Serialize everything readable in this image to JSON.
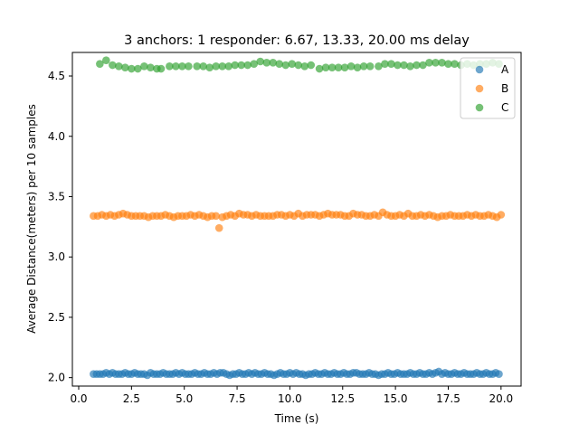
{
  "chart_data": {
    "type": "scatter",
    "title": "3 anchors: 1 responder: 6.67, 13.33, 20.00 ms delay",
    "xlabel": "Time (s)",
    "ylabel": "Average Distance(meters) per 10 samples",
    "xlim": [
      -0.3,
      20.95
    ],
    "ylim": [
      1.93,
      4.695
    ],
    "xticks": [
      0.0,
      2.5,
      5.0,
      7.5,
      10.0,
      12.5,
      15.0,
      17.5,
      20.0
    ],
    "xtick_labels": [
      "0.0",
      "2.5",
      "5.0",
      "7.5",
      "10.0",
      "12.5",
      "15.0",
      "17.5",
      "20.0"
    ],
    "yticks": [
      2.0,
      2.5,
      3.0,
      3.5,
      4.0,
      4.5
    ],
    "ytick_labels": [
      "2.0",
      "2.5",
      "3.0",
      "3.5",
      "4.0",
      "4.5"
    ],
    "grid": false,
    "legend_position": "top-right",
    "series": [
      {
        "name": "A",
        "color": "#1f77b4",
        "x": [
          0.7,
          0.85,
          1.0,
          1.15,
          1.3,
          1.45,
          1.6,
          1.75,
          1.9,
          2.05,
          2.2,
          2.35,
          2.5,
          2.65,
          2.8,
          2.95,
          3.1,
          3.25,
          3.4,
          3.55,
          3.7,
          3.85,
          4.0,
          4.15,
          4.3,
          4.45,
          4.6,
          4.75,
          4.9,
          5.05,
          5.2,
          5.35,
          5.5,
          5.65,
          5.8,
          5.95,
          6.1,
          6.25,
          6.4,
          6.55,
          6.7,
          6.85,
          7.0,
          7.15,
          7.3,
          7.45,
          7.6,
          7.75,
          7.9,
          8.05,
          8.2,
          8.35,
          8.5,
          8.65,
          8.8,
          8.95,
          9.1,
          9.25,
          9.4,
          9.55,
          9.7,
          9.85,
          10.0,
          10.15,
          10.3,
          10.45,
          10.6,
          10.75,
          10.9,
          11.05,
          11.2,
          11.35,
          11.5,
          11.65,
          11.8,
          11.95,
          12.1,
          12.25,
          12.4,
          12.55,
          12.7,
          12.85,
          13.0,
          13.15,
          13.3,
          13.45,
          13.6,
          13.75,
          13.9,
          14.05,
          14.2,
          14.35,
          14.5,
          14.65,
          14.8,
          14.95,
          15.1,
          15.25,
          15.4,
          15.55,
          15.7,
          15.85,
          16.0,
          16.15,
          16.3,
          16.45,
          16.6,
          16.75,
          16.9,
          17.05,
          17.2,
          17.35,
          17.5,
          17.65,
          17.8,
          17.95,
          18.1,
          18.25,
          18.4,
          18.55,
          18.7,
          18.85,
          19.0,
          19.15,
          19.3,
          19.45,
          19.6,
          19.75,
          19.9
        ],
        "y": [
          2.03,
          2.03,
          2.03,
          2.03,
          2.04,
          2.03,
          2.04,
          2.03,
          2.03,
          2.03,
          2.04,
          2.03,
          2.03,
          2.04,
          2.03,
          2.03,
          2.03,
          2.02,
          2.04,
          2.03,
          2.03,
          2.03,
          2.04,
          2.03,
          2.03,
          2.03,
          2.04,
          2.03,
          2.04,
          2.03,
          2.03,
          2.03,
          2.04,
          2.03,
          2.03,
          2.04,
          2.03,
          2.03,
          2.04,
          2.03,
          2.04,
          2.04,
          2.03,
          2.02,
          2.03,
          2.03,
          2.04,
          2.03,
          2.03,
          2.04,
          2.03,
          2.04,
          2.03,
          2.03,
          2.04,
          2.03,
          2.03,
          2.02,
          2.03,
          2.04,
          2.03,
          2.03,
          2.04,
          2.03,
          2.04,
          2.03,
          2.03,
          2.02,
          2.03,
          2.03,
          2.04,
          2.03,
          2.03,
          2.04,
          2.03,
          2.03,
          2.04,
          2.03,
          2.03,
          2.04,
          2.03,
          2.03,
          2.04,
          2.04,
          2.03,
          2.03,
          2.03,
          2.04,
          2.03,
          2.03,
          2.02,
          2.03,
          2.03,
          2.04,
          2.03,
          2.03,
          2.04,
          2.03,
          2.03,
          2.03,
          2.04,
          2.03,
          2.03,
          2.04,
          2.03,
          2.03,
          2.04,
          2.03,
          2.04,
          2.05,
          2.03,
          2.04,
          2.03,
          2.03,
          2.04,
          2.03,
          2.03,
          2.04,
          2.03,
          2.03,
          2.03,
          2.04,
          2.03,
          2.03,
          2.04,
          2.03,
          2.03,
          2.04,
          2.03
        ]
      },
      {
        "name": "B",
        "color": "#ff7f0e",
        "x": [
          0.7,
          0.9,
          1.1,
          1.3,
          1.5,
          1.7,
          1.9,
          2.1,
          2.3,
          2.5,
          2.7,
          2.9,
          3.1,
          3.3,
          3.5,
          3.7,
          3.9,
          4.1,
          4.3,
          4.5,
          4.7,
          4.9,
          5.1,
          5.3,
          5.5,
          5.7,
          5.9,
          6.1,
          6.3,
          6.5,
          6.65,
          6.8,
          7.0,
          7.2,
          7.4,
          7.6,
          7.8,
          8.0,
          8.2,
          8.4,
          8.6,
          8.8,
          9.0,
          9.2,
          9.4,
          9.6,
          9.8,
          10.0,
          10.2,
          10.4,
          10.6,
          10.8,
          11.0,
          11.2,
          11.4,
          11.6,
          11.8,
          12.0,
          12.2,
          12.4,
          12.6,
          12.8,
          13.0,
          13.2,
          13.4,
          13.6,
          13.8,
          14.0,
          14.2,
          14.4,
          14.6,
          14.8,
          15.0,
          15.2,
          15.4,
          15.6,
          15.8,
          16.0,
          16.2,
          16.4,
          16.6,
          16.8,
          17.0,
          17.2,
          17.4,
          17.6,
          17.8,
          18.0,
          18.2,
          18.4,
          18.6,
          18.8,
          19.0,
          19.2,
          19.4,
          19.6,
          19.8,
          20.0
        ],
        "y": [
          3.34,
          3.34,
          3.35,
          3.34,
          3.35,
          3.34,
          3.35,
          3.36,
          3.35,
          3.34,
          3.34,
          3.34,
          3.34,
          3.33,
          3.34,
          3.34,
          3.34,
          3.35,
          3.34,
          3.33,
          3.34,
          3.34,
          3.34,
          3.35,
          3.34,
          3.35,
          3.34,
          3.33,
          3.34,
          3.34,
          3.24,
          3.33,
          3.34,
          3.35,
          3.34,
          3.36,
          3.35,
          3.35,
          3.34,
          3.35,
          3.34,
          3.34,
          3.34,
          3.34,
          3.35,
          3.35,
          3.34,
          3.35,
          3.34,
          3.36,
          3.34,
          3.35,
          3.35,
          3.35,
          3.34,
          3.35,
          3.36,
          3.35,
          3.35,
          3.35,
          3.34,
          3.34,
          3.36,
          3.35,
          3.35,
          3.34,
          3.34,
          3.35,
          3.34,
          3.37,
          3.35,
          3.34,
          3.34,
          3.35,
          3.34,
          3.36,
          3.34,
          3.34,
          3.35,
          3.34,
          3.35,
          3.34,
          3.33,
          3.34,
          3.34,
          3.35,
          3.34,
          3.34,
          3.34,
          3.35,
          3.34,
          3.35,
          3.34,
          3.34,
          3.35,
          3.34,
          3.33,
          3.35
        ]
      },
      {
        "name": "C",
        "color": "#2ca02c",
        "x": [
          1.0,
          1.3,
          1.6,
          1.9,
          2.2,
          2.5,
          2.8,
          3.1,
          3.4,
          3.7,
          3.9,
          4.3,
          4.6,
          4.9,
          5.2,
          5.6,
          5.9,
          6.2,
          6.5,
          6.8,
          7.1,
          7.4,
          7.7,
          8.0,
          8.3,
          8.6,
          8.9,
          9.2,
          9.5,
          9.8,
          10.1,
          10.4,
          10.7,
          11.0,
          11.4,
          11.7,
          12.0,
          12.3,
          12.6,
          12.9,
          13.2,
          13.5,
          13.8,
          14.2,
          14.5,
          14.8,
          15.1,
          15.4,
          15.7,
          16.0,
          16.3,
          16.6,
          16.9,
          17.2,
          17.5,
          17.8,
          18.1,
          18.4,
          18.7,
          19.0,
          19.3,
          19.6,
          19.9
        ],
        "y": [
          4.6,
          4.63,
          4.59,
          4.58,
          4.57,
          4.56,
          4.56,
          4.58,
          4.57,
          4.56,
          4.56,
          4.58,
          4.58,
          4.58,
          4.58,
          4.58,
          4.58,
          4.57,
          4.58,
          4.58,
          4.58,
          4.59,
          4.59,
          4.59,
          4.6,
          4.62,
          4.61,
          4.61,
          4.6,
          4.59,
          4.6,
          4.59,
          4.58,
          4.59,
          4.56,
          4.57,
          4.57,
          4.57,
          4.57,
          4.58,
          4.57,
          4.58,
          4.58,
          4.58,
          4.6,
          4.6,
          4.59,
          4.59,
          4.58,
          4.59,
          4.59,
          4.61,
          4.61,
          4.61,
          4.6,
          4.6,
          4.59,
          4.6,
          4.59,
          4.6,
          4.6,
          4.61,
          4.6
        ]
      }
    ]
  }
}
